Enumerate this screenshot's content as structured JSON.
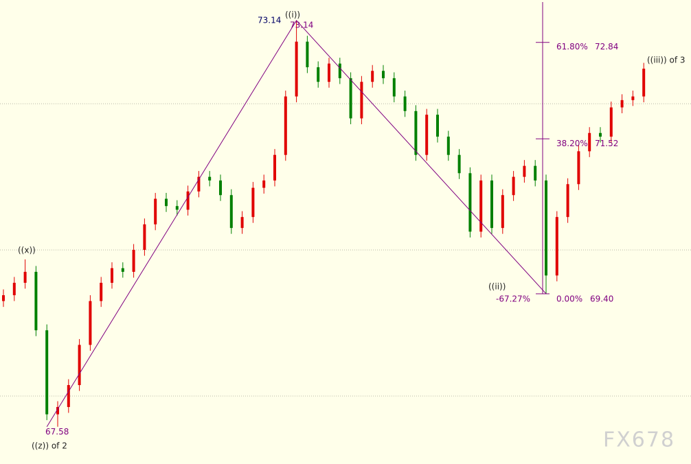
{
  "chart_data": {
    "type": "candlestick",
    "up_color": "#e00000",
    "down_color": "#008000",
    "open": [
      69.3,
      69.38,
      69.55,
      69.7,
      68.9,
      67.75,
      67.85,
      68.15,
      68.7,
      69.3,
      69.55,
      69.75,
      69.7,
      70.0,
      70.35,
      70.7,
      70.6,
      70.55,
      70.8,
      71.0,
      70.95,
      70.75,
      70.3,
      70.45,
      70.85,
      70.95,
      71.3,
      72.1,
      72.85,
      72.5,
      72.3,
      72.55,
      72.35,
      71.8,
      72.3,
      72.45,
      72.35,
      72.1,
      71.9,
      71.3,
      71.85,
      71.55,
      71.3,
      71.05,
      70.25,
      70.95,
      70.3,
      70.75,
      71.0,
      71.15,
      70.95,
      69.65,
      70.45,
      70.9,
      71.35,
      71.6,
      71.55,
      71.95,
      72.05,
      72.1
    ],
    "high": [
      69.46,
      69.63,
      69.87,
      69.78,
      68.98,
      67.93,
      68.23,
      68.78,
      69.38,
      69.63,
      69.83,
      69.83,
      70.08,
      70.43,
      70.78,
      70.78,
      70.68,
      70.88,
      71.08,
      71.08,
      71.03,
      70.83,
      70.53,
      70.93,
      71.03,
      71.38,
      72.18,
      73.14,
      72.93,
      72.58,
      72.63,
      72.63,
      72.43,
      72.38,
      72.53,
      72.53,
      72.43,
      72.18,
      71.98,
      71.93,
      71.93,
      71.63,
      71.38,
      71.13,
      71.03,
      71.03,
      70.83,
      71.08,
      71.23,
      71.23,
      71.03,
      70.53,
      70.98,
      71.43,
      71.68,
      71.68,
      72.03,
      72.13,
      72.18,
      72.56
    ],
    "low": [
      69.22,
      69.3,
      69.47,
      68.82,
      67.67,
      67.58,
      67.77,
      68.07,
      68.62,
      69.22,
      69.47,
      69.62,
      69.62,
      69.92,
      70.27,
      70.52,
      70.47,
      70.47,
      70.72,
      70.87,
      70.67,
      70.22,
      70.22,
      70.37,
      70.77,
      70.87,
      71.22,
      72.02,
      72.42,
      72.22,
      72.22,
      72.27,
      71.72,
      71.72,
      72.22,
      72.27,
      72.02,
      71.82,
      71.22,
      71.22,
      71.47,
      71.22,
      70.97,
      70.17,
      70.17,
      70.22,
      70.22,
      70.67,
      70.92,
      70.87,
      69.4,
      69.57,
      70.37,
      70.82,
      71.27,
      71.47,
      71.47,
      71.87,
      71.97,
      72.02
    ],
    "close": [
      69.38,
      69.55,
      69.7,
      68.9,
      67.75,
      67.85,
      68.15,
      68.7,
      69.3,
      69.55,
      69.75,
      69.7,
      70.0,
      70.35,
      70.7,
      70.6,
      70.55,
      70.8,
      71.0,
      70.95,
      70.75,
      70.3,
      70.45,
      70.85,
      70.95,
      71.3,
      72.1,
      72.85,
      72.5,
      72.3,
      72.55,
      72.35,
      71.8,
      72.3,
      72.45,
      72.35,
      72.1,
      71.9,
      71.3,
      71.85,
      71.55,
      71.3,
      71.05,
      70.25,
      70.95,
      70.3,
      70.75,
      71.0,
      71.15,
      70.95,
      69.65,
      70.45,
      70.9,
      71.35,
      71.6,
      71.55,
      71.95,
      72.05,
      72.1,
      72.48
    ],
    "ylim": [
      67.07,
      73.42
    ],
    "grid_lines": [
      68,
      70,
      72
    ],
    "wave_line": {
      "color": "#800080",
      "values": [
        67.58,
        73.14,
        69.4
      ]
    },
    "price_labels": [
      {
        "value": 73.14,
        "label": "73.14"
      },
      {
        "value": 73.14,
        "label": "73.14"
      },
      {
        "value": 67.58,
        "label": "67.58"
      }
    ],
    "wave_labels": [
      "((x))",
      "((z)) of 2",
      "((i))",
      "((ii))",
      "((iii)) of 3"
    ],
    "retrace_label": "-67.27%",
    "fib_levels": [
      {
        "pct": "61.80%",
        "value": 72.84,
        "value_label": "72.84"
      },
      {
        "pct": "38.20%",
        "value": 71.52,
        "value_label": "71.52"
      },
      {
        "pct": "0.00%",
        "value": 69.4,
        "value_label": "69.40"
      }
    ],
    "watermark": "FX678"
  }
}
